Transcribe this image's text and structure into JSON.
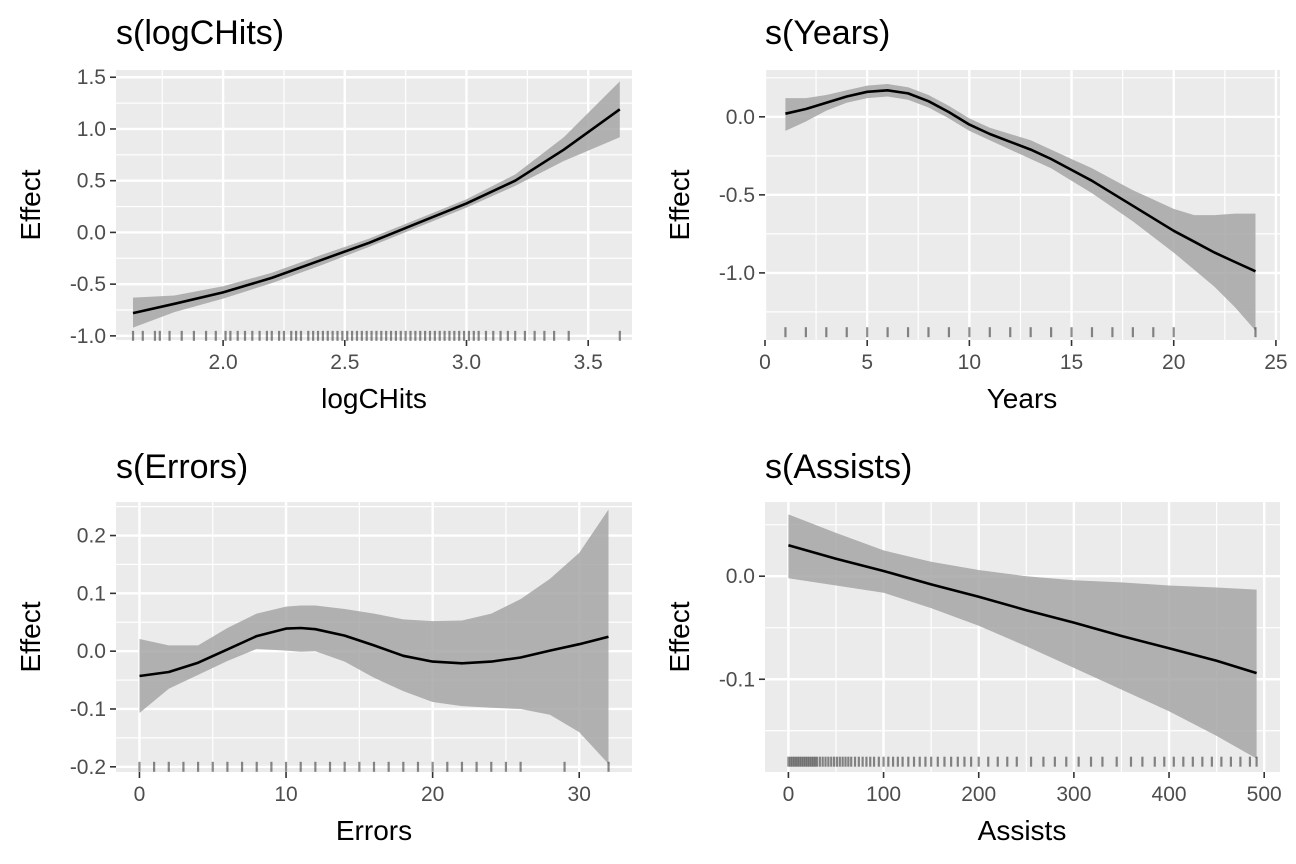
{
  "chart_data": [
    {
      "type": "line",
      "title": "s(logCHits)",
      "xlabel": "logCHits",
      "ylabel": "Effect",
      "xlim": [
        1.56,
        3.68
      ],
      "ylim": [
        -1.04,
        1.57
      ],
      "xticks": [
        2.0,
        2.5,
        3.0,
        3.5
      ],
      "xtick_labels": [
        "2.0",
        "2.5",
        "3.0",
        "3.5"
      ],
      "yticks": [
        -1.0,
        -0.5,
        0.0,
        0.5,
        1.0,
        1.5
      ],
      "ytick_labels": [
        "-1.0",
        "-0.5",
        "0.0",
        "0.5",
        "1.0",
        "1.5"
      ],
      "grid": true,
      "x": [
        1.63,
        1.8,
        2.0,
        2.2,
        2.4,
        2.6,
        2.8,
        3.0,
        3.2,
        3.4,
        3.63
      ],
      "series": [
        {
          "role": "estimate",
          "values": [
            -0.78,
            -0.69,
            -0.58,
            -0.44,
            -0.27,
            -0.1,
            0.09,
            0.28,
            0.5,
            0.8,
            1.19
          ]
        },
        {
          "role": "lower",
          "values": [
            -0.92,
            -0.77,
            -0.64,
            -0.49,
            -0.32,
            -0.14,
            0.05,
            0.24,
            0.45,
            0.69,
            0.92
          ]
        },
        {
          "role": "upper",
          "values": [
            -0.63,
            -0.61,
            -0.52,
            -0.39,
            -0.22,
            -0.06,
            0.13,
            0.32,
            0.56,
            0.92,
            1.46
          ]
        }
      ],
      "rug_y": -1.0,
      "rug": [
        1.63,
        1.67,
        1.72,
        1.74,
        1.78,
        1.83,
        1.88,
        1.93,
        1.97,
        2.01,
        2.03,
        2.06,
        2.09,
        2.12,
        2.15,
        2.18,
        2.2,
        2.23,
        2.25,
        2.28,
        2.3,
        2.32,
        2.35,
        2.37,
        2.39,
        2.41,
        2.43,
        2.45,
        2.47,
        2.49,
        2.51,
        2.53,
        2.55,
        2.57,
        2.59,
        2.61,
        2.63,
        2.65,
        2.67,
        2.69,
        2.71,
        2.73,
        2.75,
        2.77,
        2.79,
        2.81,
        2.83,
        2.85,
        2.87,
        2.89,
        2.91,
        2.93,
        2.95,
        2.97,
        2.99,
        3.01,
        3.03,
        3.05,
        3.08,
        3.11,
        3.14,
        3.17,
        3.2,
        3.24,
        3.28,
        3.32,
        3.36,
        3.42,
        3.63
      ]
    },
    {
      "type": "line",
      "title": "s(Years)",
      "xlabel": "Years",
      "ylabel": "Effect",
      "xlim": [
        0,
        25.2
      ],
      "ylim": [
        -1.43,
        0.3
      ],
      "xticks": [
        0,
        5,
        10,
        15,
        20,
        25
      ],
      "xtick_labels": [
        "0",
        "5",
        "10",
        "15",
        "20",
        "25"
      ],
      "yticks": [
        -1.0,
        -0.5,
        0.0
      ],
      "ytick_labels": [
        "-1.0",
        "-0.5",
        "0.0"
      ],
      "grid": true,
      "x": [
        1,
        2,
        3,
        4,
        5,
        6,
        7,
        8,
        9,
        10,
        11,
        12,
        13,
        14,
        15,
        16,
        17,
        18,
        19,
        20,
        21,
        22,
        23,
        24
      ],
      "series": [
        {
          "role": "estimate",
          "values": [
            0.02,
            0.05,
            0.09,
            0.13,
            0.16,
            0.17,
            0.15,
            0.1,
            0.03,
            -0.05,
            -0.11,
            -0.16,
            -0.21,
            -0.27,
            -0.34,
            -0.41,
            -0.49,
            -0.57,
            -0.65,
            -0.73,
            -0.8,
            -0.87,
            -0.93,
            -0.99
          ]
        },
        {
          "role": "lower",
          "values": [
            -0.09,
            -0.03,
            0.04,
            0.09,
            0.12,
            0.13,
            0.11,
            0.06,
            -0.01,
            -0.09,
            -0.15,
            -0.21,
            -0.27,
            -0.33,
            -0.41,
            -0.49,
            -0.58,
            -0.67,
            -0.77,
            -0.87,
            -0.98,
            -1.09,
            -1.22,
            -1.37
          ]
        },
        {
          "role": "upper",
          "values": [
            0.12,
            0.12,
            0.14,
            0.17,
            0.2,
            0.21,
            0.19,
            0.14,
            0.07,
            -0.01,
            -0.07,
            -0.11,
            -0.15,
            -0.21,
            -0.27,
            -0.33,
            -0.4,
            -0.47,
            -0.53,
            -0.59,
            -0.63,
            -0.63,
            -0.62,
            -0.62
          ]
        }
      ],
      "rug_y": -1.38,
      "rug": [
        1,
        2,
        3,
        4,
        5,
        6,
        7,
        8,
        9,
        10,
        11,
        12,
        13,
        14,
        15,
        16,
        17,
        18,
        19,
        20,
        24
      ]
    },
    {
      "type": "line",
      "title": "s(Errors)",
      "xlabel": "Errors",
      "ylabel": "Effect",
      "xlim": [
        -1.6,
        33.6
      ],
      "ylim": [
        -0.209,
        0.258
      ],
      "xticks": [
        0,
        10,
        20,
        30
      ],
      "xtick_labels": [
        "0",
        "10",
        "20",
        "30"
      ],
      "yticks": [
        -0.2,
        -0.1,
        0.0,
        0.1,
        0.2
      ],
      "ytick_labels": [
        "-0.2",
        "-0.1",
        "0.0",
        "0.1",
        "0.2"
      ],
      "grid": true,
      "x": [
        0,
        2,
        4,
        6,
        8,
        10,
        11,
        12,
        14,
        16,
        18,
        20,
        22,
        24,
        26,
        28,
        30,
        32
      ],
      "series": [
        {
          "role": "estimate",
          "values": [
            -0.043,
            -0.036,
            -0.02,
            0.003,
            0.026,
            0.039,
            0.04,
            0.038,
            0.027,
            0.01,
            -0.008,
            -0.018,
            -0.021,
            -0.018,
            -0.011,
            0.001,
            0.012,
            0.025
          ]
        },
        {
          "role": "lower",
          "values": [
            -0.107,
            -0.065,
            -0.041,
            -0.017,
            0.004,
            0.001,
            -0.001,
            0.0,
            -0.018,
            -0.046,
            -0.069,
            -0.088,
            -0.095,
            -0.098,
            -0.1,
            -0.11,
            -0.14,
            -0.195
          ]
        },
        {
          "role": "upper",
          "values": [
            0.021,
            0.01,
            0.01,
            0.04,
            0.065,
            0.077,
            0.079,
            0.079,
            0.073,
            0.065,
            0.055,
            0.052,
            0.053,
            0.065,
            0.09,
            0.125,
            0.17,
            0.245
          ]
        }
      ],
      "rug_y": -0.2,
      "rug": [
        0,
        1,
        2,
        3,
        4,
        5,
        6,
        7,
        8,
        9,
        10,
        11,
        12,
        13,
        14,
        15,
        16,
        17,
        18,
        19,
        20,
        21,
        22,
        23,
        24,
        25,
        26,
        29,
        32
      ]
    },
    {
      "type": "line",
      "title": "s(Assists)",
      "xlabel": "Assists",
      "ylabel": "Effect",
      "xlim": [
        -24.6,
        516.6
      ],
      "ylim": [
        -0.19,
        0.072
      ],
      "xticks": [
        0,
        100,
        200,
        300,
        400,
        500
      ],
      "xtick_labels": [
        "0",
        "100",
        "200",
        "300",
        "400",
        "500"
      ],
      "yticks": [
        -0.1,
        0.0
      ],
      "ytick_labels": [
        "-0.1",
        "0.0"
      ],
      "grid": true,
      "x": [
        0,
        50,
        100,
        150,
        200,
        250,
        300,
        350,
        400,
        450,
        492
      ],
      "series": [
        {
          "role": "estimate",
          "values": [
            0.03,
            0.017,
            0.005,
            -0.008,
            -0.02,
            -0.033,
            -0.045,
            -0.058,
            -0.07,
            -0.082,
            -0.094
          ]
        },
        {
          "role": "lower",
          "values": [
            -0.002,
            -0.009,
            -0.016,
            -0.031,
            -0.048,
            -0.068,
            -0.089,
            -0.11,
            -0.131,
            -0.155,
            -0.177
          ]
        },
        {
          "role": "upper",
          "values": [
            0.06,
            0.042,
            0.025,
            0.014,
            0.006,
            0.0,
            -0.004,
            -0.006,
            -0.009,
            -0.011,
            -0.013
          ]
        }
      ],
      "rug_y": -0.18,
      "rug": [
        0,
        2,
        4,
        6,
        8,
        10,
        12,
        14,
        16,
        18,
        20,
        22,
        24,
        26,
        28,
        30,
        33,
        36,
        39,
        42,
        45,
        48,
        51,
        54,
        57,
        60,
        63,
        66,
        70,
        74,
        78,
        82,
        86,
        90,
        95,
        100,
        105,
        110,
        115,
        120,
        126,
        132,
        138,
        144,
        150,
        157,
        164,
        171,
        178,
        185,
        192,
        200,
        210,
        220,
        230,
        240,
        255,
        268,
        280,
        292,
        305,
        318,
        330,
        345,
        360,
        372,
        385,
        395,
        405,
        415,
        425,
        435,
        445,
        455,
        465,
        475,
        485,
        492
      ]
    }
  ]
}
